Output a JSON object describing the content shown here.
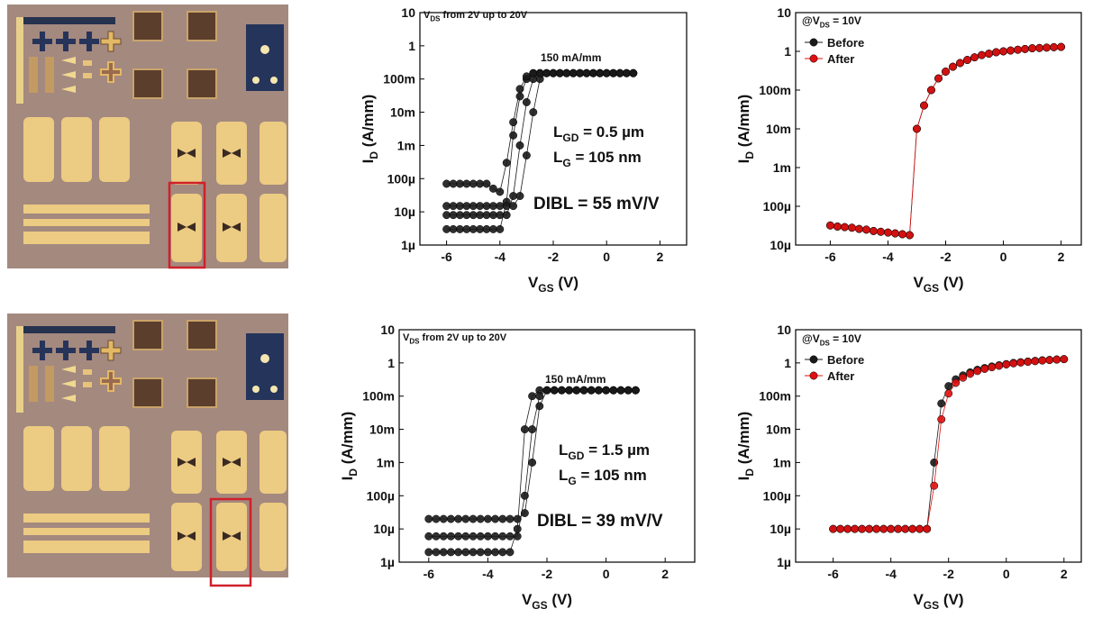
{
  "chart_data": [
    {
      "type": "line",
      "log_y": true,
      "xlim": [
        -7,
        3
      ],
      "ylim": [
        1e-06,
        10
      ],
      "xticks": [
        -6,
        -4,
        -2,
        0,
        2
      ],
      "yticks": [
        10,
        1,
        {
          "value": 0.1,
          "label": "100m"
        },
        {
          "value": 0.01,
          "label": "10m"
        },
        {
          "value": 0.001,
          "label": "1m"
        },
        {
          "value": 0.0001,
          "label": "100µ"
        },
        {
          "value": 1e-05,
          "label": "10µ"
        },
        {
          "value": 1e-06,
          "label": "1µ"
        }
      ],
      "x_label": [
        "V",
        "GS",
        " (V)"
      ],
      "y_label": [
        "I",
        "D",
        " (A/mm)"
      ],
      "annotations": [
        [
          "V",
          "DS",
          " from 2V up to 20V"
        ],
        [
          "150 mA/mm"
        ],
        [
          "L",
          "GD",
          " = 0.5 µm"
        ],
        [
          "L",
          "G",
          " = 105 nm"
        ],
        [
          "DIBL = 55 mV/V"
        ]
      ],
      "x": [
        -6,
        -5.75,
        -5.5,
        -5.25,
        -5,
        -4.75,
        -4.5,
        -4.25,
        -4,
        -3.75,
        -3.5,
        -3.25,
        -3,
        -2.75,
        -2.5,
        -2.25,
        -2,
        -1.75,
        -1.5,
        -1.25,
        -1,
        -0.75,
        -0.5,
        -0.25,
        0,
        0.25,
        0.5,
        0.75,
        1
      ],
      "series": [
        {
          "color": "#1a1a1a",
          "values": [
            3e-06,
            3e-06,
            3e-06,
            3e-06,
            3e-06,
            3e-06,
            3e-06,
            3e-06,
            3e-06,
            2e-05,
            0.002,
            0.03,
            0.1,
            0.15,
            0.15,
            0.15,
            0.15,
            0.15,
            0.15,
            0.15,
            0.15,
            0.15,
            0.15,
            0.15,
            0.15,
            0.15,
            0.15,
            0.15,
            0.15
          ]
        },
        {
          "color": "#1a1a1a",
          "values": [
            8e-06,
            8e-06,
            8e-06,
            8e-06,
            8e-06,
            8e-06,
            8e-06,
            8e-06,
            8e-06,
            8e-06,
            3e-05,
            0.001,
            0.02,
            0.1,
            0.15,
            0.15,
            0.15,
            0.15,
            0.15,
            0.15,
            0.15,
            0.15,
            0.15,
            0.15,
            0.15,
            0.15,
            0.15,
            0.15,
            0.15
          ]
        },
        {
          "color": "#1a1a1a",
          "values": [
            1.5e-05,
            1.5e-05,
            1.5e-05,
            1.5e-05,
            1.5e-05,
            1.5e-05,
            1.5e-05,
            1.5e-05,
            1.5e-05,
            1.5e-05,
            1.5e-05,
            3e-05,
            0.0005,
            0.01,
            0.1,
            0.15,
            0.15,
            0.15,
            0.15,
            0.15,
            0.15,
            0.15,
            0.15,
            0.15,
            0.15,
            0.15,
            0.15,
            0.15,
            0.15
          ]
        },
        {
          "color": "#1a1a1a",
          "values": [
            7e-05,
            7e-05,
            7e-05,
            7e-05,
            7e-05,
            7e-05,
            7e-05,
            5e-05,
            4e-05,
            0.0003,
            0.005,
            0.05,
            0.12,
            0.15,
            0.15,
            0.15,
            0.15,
            0.15,
            0.15,
            0.15,
            0.15,
            0.15,
            0.15,
            0.15,
            0.15,
            0.15,
            0.15,
            0.15,
            0.15
          ]
        }
      ]
    },
    {
      "type": "line",
      "log_y": true,
      "xlim": [
        -7.2,
        2.7
      ],
      "ylim": [
        1e-05,
        10
      ],
      "xticks": [
        -6,
        -4,
        -2,
        0,
        2
      ],
      "yticks": [
        10,
        1,
        {
          "value": 0.1,
          "label": "100m"
        },
        {
          "value": 0.01,
          "label": "10m"
        },
        {
          "value": 0.001,
          "label": "1m"
        },
        {
          "value": 0.0001,
          "label": "100µ"
        },
        {
          "value": 1e-05,
          "label": "10µ"
        }
      ],
      "x_label": [
        "V",
        "GS",
        " (V)"
      ],
      "y_label": [
        "I",
        "D",
        " (A/mm)"
      ],
      "annotations": [
        [
          "@V",
          "DS",
          " = 10V"
        ]
      ],
      "legend": "top-left",
      "x": [
        -6,
        -5.75,
        -5.5,
        -5.25,
        -5,
        -4.75,
        -4.5,
        -4.25,
        -4,
        -3.75,
        -3.5,
        -3.25,
        -3,
        -2.75,
        -2.5,
        -2.25,
        -2,
        -1.75,
        -1.5,
        -1.25,
        -1,
        -0.75,
        -0.5,
        -0.25,
        0,
        0.25,
        0.5,
        0.75,
        1,
        1.25,
        1.5,
        1.75,
        2
      ],
      "series": [
        {
          "name": "Before",
          "color": "#1a1a1a",
          "values": [
            3.2e-05,
            3e-05,
            2.9e-05,
            2.8e-05,
            2.6e-05,
            2.5e-05,
            2.3e-05,
            2.2e-05,
            2.1e-05,
            2e-05,
            1.9e-05,
            1.8e-05,
            0.01,
            0.04,
            0.1,
            0.2,
            0.3,
            0.4,
            0.5,
            0.6,
            0.7,
            0.8,
            0.87,
            0.95,
            1.0,
            1.05,
            1.1,
            1.15,
            1.2,
            1.22,
            1.25,
            1.28,
            1.3
          ]
        },
        {
          "name": "After",
          "color": "#e01010",
          "values": [
            3.2e-05,
            3e-05,
            2.9e-05,
            2.8e-05,
            2.6e-05,
            2.5e-05,
            2.3e-05,
            2.2e-05,
            2.1e-05,
            2e-05,
            1.9e-05,
            1.8e-05,
            0.01,
            0.04,
            0.1,
            0.2,
            0.3,
            0.4,
            0.5,
            0.6,
            0.7,
            0.8,
            0.87,
            0.95,
            1.0,
            1.05,
            1.1,
            1.15,
            1.2,
            1.22,
            1.25,
            1.28,
            1.3
          ]
        }
      ]
    },
    {
      "type": "line",
      "log_y": true,
      "xlim": [
        -7,
        3
      ],
      "ylim": [
        1e-06,
        10
      ],
      "xticks": [
        -6,
        -4,
        -2,
        0,
        2
      ],
      "yticks": [
        10,
        1,
        {
          "value": 0.1,
          "label": "100m"
        },
        {
          "value": 0.01,
          "label": "10m"
        },
        {
          "value": 0.001,
          "label": "1m"
        },
        {
          "value": 0.0001,
          "label": "100µ"
        },
        {
          "value": 1e-05,
          "label": "10µ"
        },
        {
          "value": 1e-06,
          "label": "1µ"
        }
      ],
      "x_label": [
        "V",
        "GS",
        " (V)"
      ],
      "y_label": [
        "I",
        "D",
        " (A/mm)"
      ],
      "annotations": [
        [
          "V",
          "DS",
          " from 2V up to 20V"
        ],
        [
          "150 mA/mm"
        ],
        [
          "L",
          "GD",
          " = 1.5 µm"
        ],
        [
          "L",
          "G",
          " = 105 nm"
        ],
        [
          "DIBL = 39 mV/V"
        ]
      ],
      "x": [
        -6,
        -5.75,
        -5.5,
        -5.25,
        -5,
        -4.75,
        -4.5,
        -4.25,
        -4,
        -3.75,
        -3.5,
        -3.25,
        -3,
        -2.75,
        -2.5,
        -2.25,
        -2,
        -1.75,
        -1.5,
        -1.25,
        -1,
        -0.75,
        -0.5,
        -0.25,
        0,
        0.25,
        0.5,
        0.75,
        1
      ],
      "series": [
        {
          "color": "#1a1a1a",
          "values": [
            2e-06,
            2e-06,
            2e-06,
            2e-06,
            2e-06,
            2e-06,
            2e-06,
            2e-06,
            2e-06,
            2e-06,
            2e-06,
            2e-06,
            1e-05,
            0.01,
            0.1,
            0.15,
            0.15,
            0.15,
            0.15,
            0.15,
            0.15,
            0.15,
            0.15,
            0.15,
            0.15,
            0.15,
            0.15,
            0.15,
            0.15
          ]
        },
        {
          "color": "#1a1a1a",
          "values": [
            6e-06,
            6e-06,
            6e-06,
            6e-06,
            6e-06,
            6e-06,
            6e-06,
            6e-06,
            6e-06,
            6e-06,
            6e-06,
            6e-06,
            6e-06,
            0.0001,
            0.01,
            0.1,
            0.15,
            0.15,
            0.15,
            0.15,
            0.15,
            0.15,
            0.15,
            0.15,
            0.15,
            0.15,
            0.15,
            0.15,
            0.15
          ]
        },
        {
          "color": "#1a1a1a",
          "values": [
            2e-05,
            2e-05,
            2e-05,
            2e-05,
            2e-05,
            2e-05,
            2e-05,
            2e-05,
            2e-05,
            2e-05,
            2e-05,
            2e-05,
            2e-05,
            3e-05,
            0.001,
            0.05,
            0.15,
            0.15,
            0.15,
            0.15,
            0.15,
            0.15,
            0.15,
            0.15,
            0.15,
            0.15,
            0.15,
            0.15,
            0.15
          ]
        }
      ]
    },
    {
      "type": "line",
      "log_y": true,
      "xlim": [
        -7.3,
        2.6
      ],
      "ylim": [
        1e-06,
        10
      ],
      "xticks": [
        -6,
        -4,
        -2,
        0,
        2
      ],
      "yticks": [
        10,
        1,
        {
          "value": 0.1,
          "label": "100m"
        },
        {
          "value": 0.01,
          "label": "10m"
        },
        {
          "value": 0.001,
          "label": "1m"
        },
        {
          "value": 0.0001,
          "label": "100µ"
        },
        {
          "value": 1e-05,
          "label": "10µ"
        },
        {
          "value": 1e-06,
          "label": "1µ"
        }
      ],
      "x_label": [
        "V",
        "GS",
        " (V)"
      ],
      "y_label": [
        "I",
        "D",
        " (A/mm)"
      ],
      "annotations": [
        [
          "@V",
          "DS",
          " = 10V"
        ]
      ],
      "legend": "top-left",
      "x": [
        -6,
        -5.75,
        -5.5,
        -5.25,
        -5,
        -4.75,
        -4.5,
        -4.25,
        -4,
        -3.75,
        -3.5,
        -3.25,
        -3,
        -2.75,
        -2.5,
        -2.25,
        -2,
        -1.75,
        -1.5,
        -1.25,
        -1,
        -0.75,
        -0.5,
        -0.25,
        0,
        0.25,
        0.5,
        0.75,
        1,
        1.25,
        1.5,
        1.75,
        2
      ],
      "series": [
        {
          "name": "Before",
          "color": "#1a1a1a",
          "values": [
            1e-05,
            1e-05,
            1e-05,
            1e-05,
            1e-05,
            1e-05,
            1e-05,
            1e-05,
            1e-05,
            1e-05,
            1e-05,
            1e-05,
            1e-05,
            1e-05,
            0.001,
            0.06,
            0.2,
            0.32,
            0.42,
            0.52,
            0.62,
            0.7,
            0.78,
            0.85,
            0.92,
            1.0,
            1.05,
            1.1,
            1.15,
            1.2,
            1.23,
            1.27,
            1.3
          ]
        },
        {
          "name": "After",
          "color": "#e01010",
          "values": [
            1e-05,
            1e-05,
            1e-05,
            1e-05,
            1e-05,
            1e-05,
            1e-05,
            1e-05,
            1e-05,
            1e-05,
            1e-05,
            1e-05,
            1e-05,
            1e-05,
            0.0002,
            0.02,
            0.12,
            0.25,
            0.36,
            0.47,
            0.57,
            0.66,
            0.74,
            0.82,
            0.9,
            0.97,
            1.03,
            1.08,
            1.13,
            1.18,
            1.22,
            1.26,
            1.3
          ]
        }
      ]
    }
  ]
}
